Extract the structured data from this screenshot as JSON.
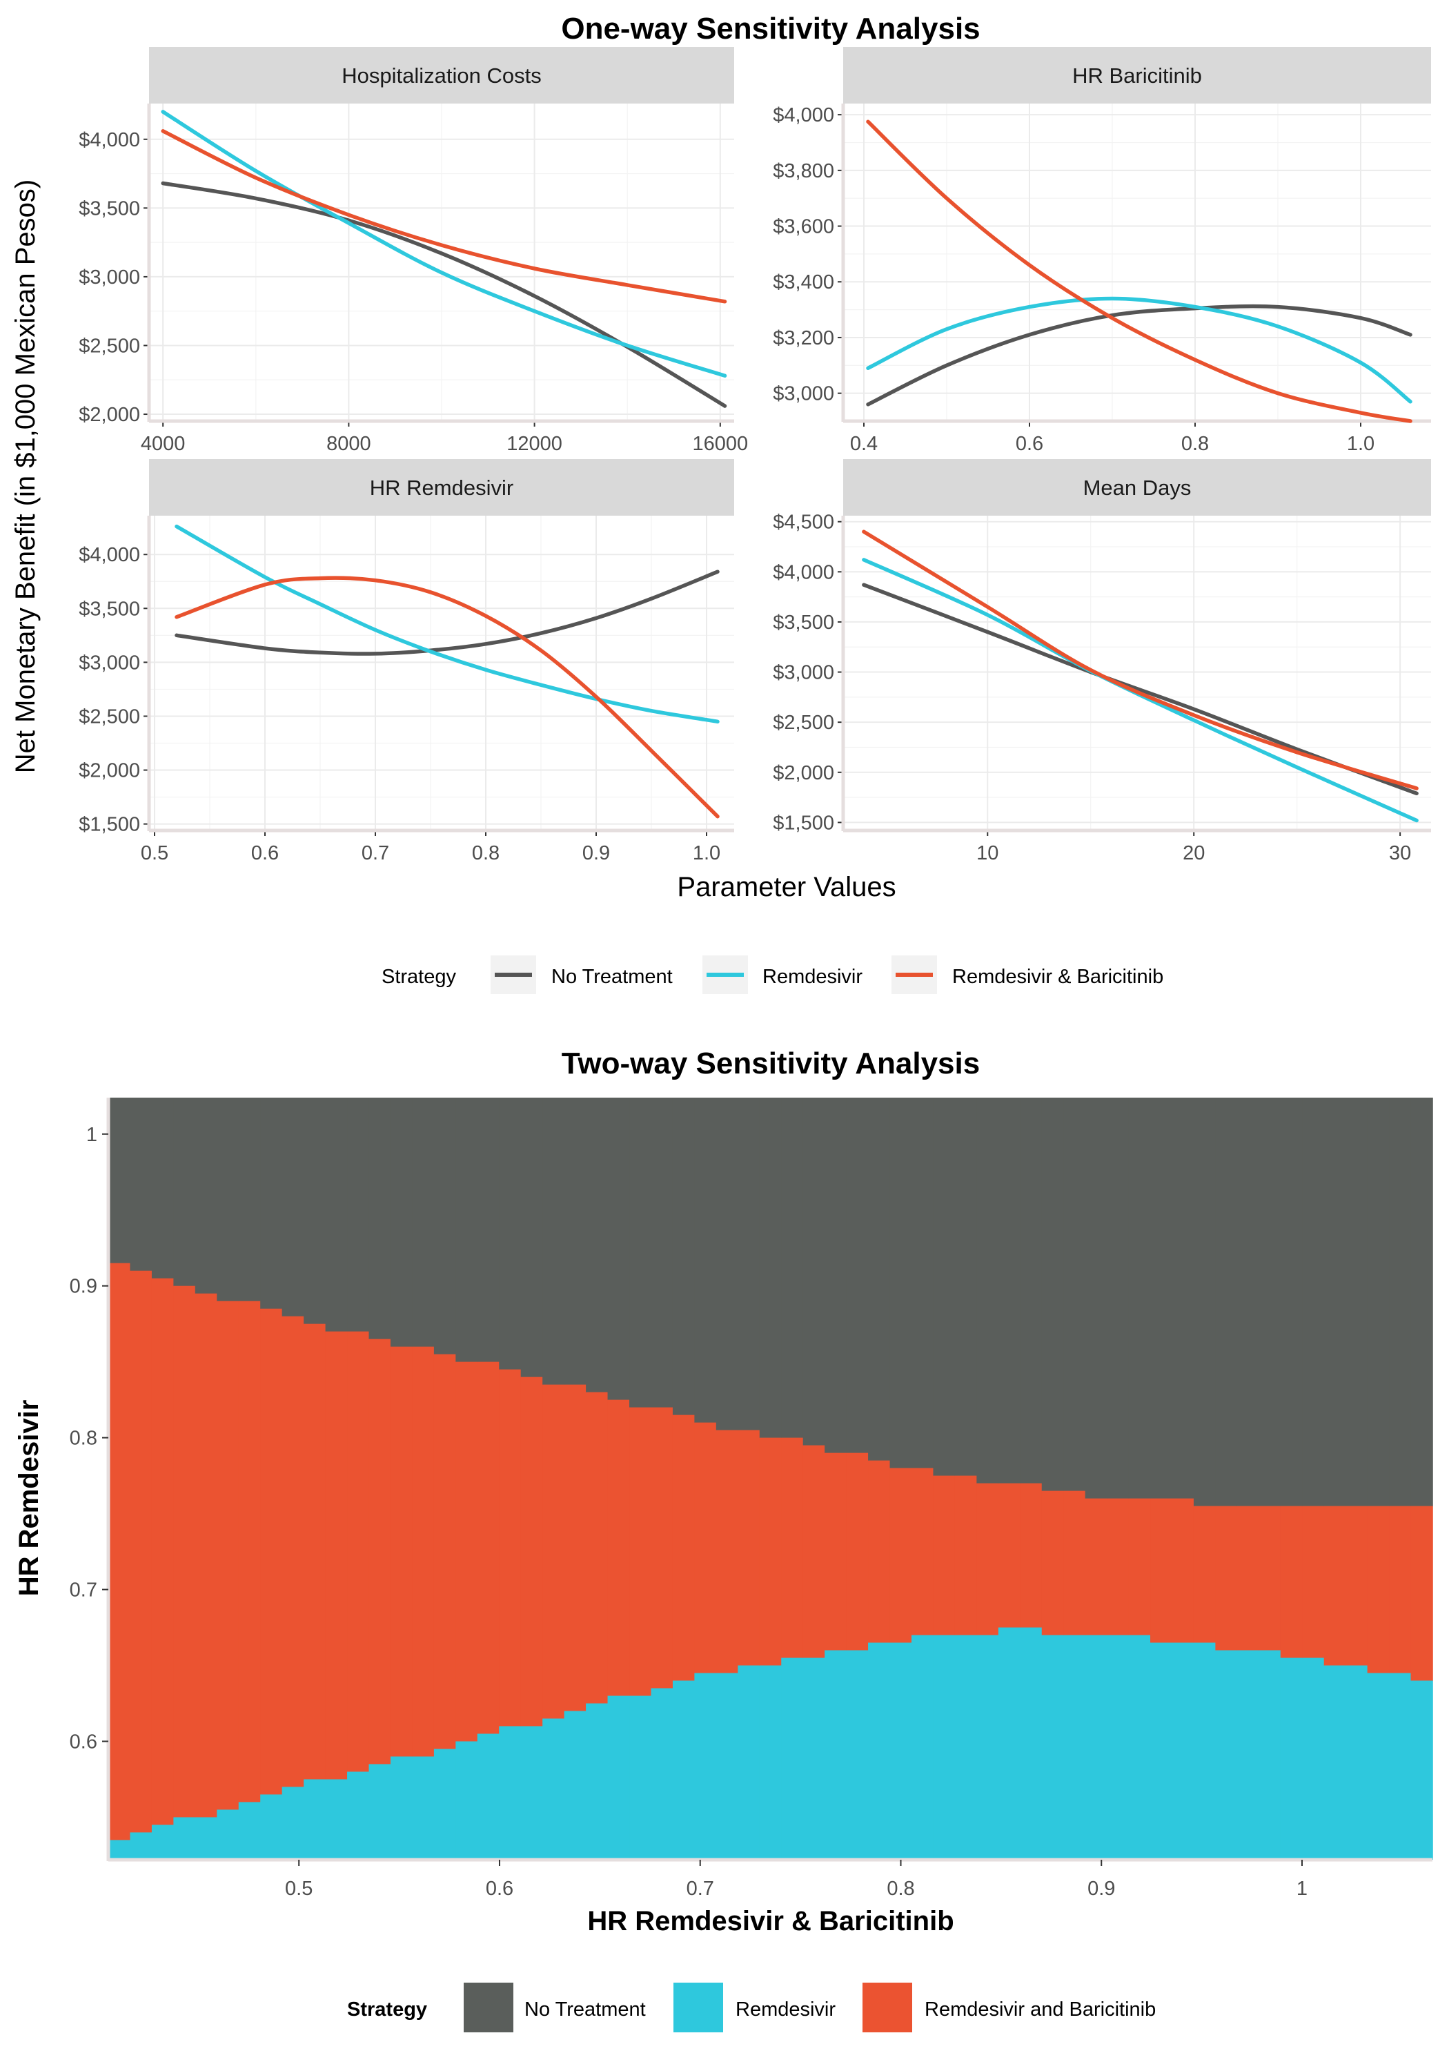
{
  "colors": {
    "no_treatment": "#555555",
    "remdesivir": "#2EC8DD",
    "remdesivir_baricitinib": "#E8522E",
    "no_treatment_fill": "#5A5E5B",
    "remdesivir_fill": "#2EC8DD",
    "remdesivir_baricitinib_fill": "#EB5331"
  },
  "chart_data": [
    {
      "type": "line",
      "title": "One-way Sensitivity Analysis",
      "ylabel": "Net Monetary Benefit (in $1,000 Mexican Pesos)",
      "xlabel": "Parameter Values",
      "legend": {
        "title": "Strategy",
        "position": "bottom",
        "entries": [
          "No Treatment",
          "Remdesivir",
          "Remdesivir & Baricitinib"
        ]
      },
      "panels": [
        {
          "strip": "Hospitalization Costs",
          "xlim": [
            3700,
            16300
          ],
          "ylim": [
            1950,
            4260
          ],
          "xticks": [
            4000,
            8000,
            12000,
            16000
          ],
          "xtick_labels": [
            "4000",
            "8000",
            "12000",
            "16000"
          ],
          "yticks": [
            2000,
            2500,
            3000,
            3500,
            4000
          ],
          "ytick_labels": [
            "$2,000",
            "$2,500",
            "$3,000",
            "$3,500",
            "$4,000"
          ],
          "x": [
            4000,
            6000,
            8000,
            10000,
            12000,
            14000,
            16100
          ],
          "series": [
            {
              "name": "No Treatment",
              "values": [
                3680,
                3570,
                3410,
                3170,
                2860,
                2490,
                2060
              ]
            },
            {
              "name": "Remdesivir",
              "values": [
                4200,
                3770,
                3390,
                3030,
                2750,
                2500,
                2280
              ]
            },
            {
              "name": "Remdesivir & Baricitinib",
              "values": [
                4060,
                3720,
                3450,
                3230,
                3060,
                2940,
                2820
              ]
            }
          ]
        },
        {
          "strip": "HR Baricitinib",
          "xlim": [
            0.375,
            1.085
          ],
          "ylim": [
            2900,
            4040
          ],
          "xticks": [
            0.4,
            0.6,
            0.8,
            1.0
          ],
          "xtick_labels": [
            "0.4",
            "0.6",
            "0.8",
            "1.0"
          ],
          "yticks": [
            3000,
            3200,
            3400,
            3600,
            3800,
            4000
          ],
          "ytick_labels": [
            "$3,000",
            "$3,200",
            "$3,400",
            "$3,600",
            "$3,800",
            "$4,000"
          ],
          "x": [
            0.405,
            0.5,
            0.6,
            0.7,
            0.8,
            0.9,
            1.0,
            1.06
          ],
          "series": [
            {
              "name": "No Treatment",
              "values": [
                2960,
                3100,
                3210,
                3280,
                3305,
                3310,
                3270,
                3210
              ]
            },
            {
              "name": "Remdesivir",
              "values": [
                3090,
                3230,
                3310,
                3340,
                3310,
                3240,
                3110,
                2970
              ]
            },
            {
              "name": "Remdesivir & Baricitinib",
              "values": [
                3975,
                3700,
                3460,
                3270,
                3120,
                3000,
                2930,
                2900
              ]
            }
          ]
        },
        {
          "strip": "HR Remdesivir",
          "xlim": [
            0.495,
            1.025
          ],
          "ylim": [
            1440,
            4360
          ],
          "xticks": [
            0.5,
            0.6,
            0.7,
            0.8,
            0.9,
            1.0
          ],
          "xtick_labels": [
            "0.5",
            "0.6",
            "0.7",
            "0.8",
            "0.9",
            "1.0"
          ],
          "yticks": [
            1500,
            2000,
            2500,
            3000,
            3500,
            4000
          ],
          "ytick_labels": [
            "$1,500",
            "$2,000",
            "$2,500",
            "$3,000",
            "$3,500",
            "$4,000"
          ],
          "x": [
            0.52,
            0.6,
            0.65,
            0.7,
            0.75,
            0.8,
            0.85,
            0.9,
            0.95,
            1.01
          ],
          "series": [
            {
              "name": "No Treatment",
              "values": [
                3250,
                3130,
                3090,
                3080,
                3110,
                3170,
                3270,
                3410,
                3590,
                3840
              ]
            },
            {
              "name": "Remdesivir",
              "values": [
                4260,
                3790,
                3540,
                3300,
                3100,
                2930,
                2790,
                2660,
                2550,
                2450
              ]
            },
            {
              "name": "Remdesivir & Baricitinib",
              "values": [
                3420,
                3720,
                3780,
                3760,
                3650,
                3430,
                3110,
                2680,
                2180,
                1570
              ]
            }
          ]
        },
        {
          "strip": "Mean Days",
          "xlim": [
            3,
            31.5
          ],
          "ylim": [
            1420,
            4560
          ],
          "xticks": [
            10,
            20,
            30
          ],
          "xtick_labels": [
            "10",
            "20",
            "30"
          ],
          "yticks": [
            1500,
            2000,
            2500,
            3000,
            3500,
            4000,
            4500
          ],
          "ytick_labels": [
            "$1,500",
            "$2,000",
            "$2,500",
            "$3,000",
            "$3,500",
            "$4,000",
            "$4,500"
          ],
          "x": [
            4,
            10,
            15,
            20,
            25,
            30.8
          ],
          "series": [
            {
              "name": "No Treatment",
              "values": [
                3870,
                3400,
                3000,
                2630,
                2230,
                1790
              ]
            },
            {
              "name": "Remdesivir",
              "values": [
                4120,
                3570,
                3010,
                2520,
                2050,
                1520
              ]
            },
            {
              "name": "Remdesivir & Baricitinib",
              "values": [
                4400,
                3650,
                3020,
                2570,
                2200,
                1840
              ]
            }
          ]
        }
      ]
    },
    {
      "type": "heatmap",
      "title": "Two-way Sensitivity Analysis",
      "xlabel": "HR Remdesivir & Baricitinib",
      "ylabel": "HR Remdesivir",
      "xlim": [
        0.405,
        1.065
      ],
      "ylim": [
        0.522,
        1.024
      ],
      "xticks": [
        0.5,
        0.6,
        0.7,
        0.8,
        0.9,
        1.0
      ],
      "xtick_labels": [
        "0.5",
        "0.6",
        "0.7",
        "0.8",
        "0.9",
        "1"
      ],
      "yticks": [
        0.6,
        0.7,
        0.8,
        0.9,
        1.0
      ],
      "ytick_labels": [
        "0.6",
        "0.7",
        "0.8",
        "0.9",
        "1"
      ],
      "x": [
        0.405,
        0.5,
        0.6,
        0.7,
        0.8,
        0.85,
        0.9,
        1.0,
        1.065
      ],
      "upper_boundary": [
        0.916,
        0.878,
        0.846,
        0.811,
        0.782,
        0.771,
        0.762,
        0.753,
        0.753
      ],
      "lower_boundary": [
        0.533,
        0.57,
        0.606,
        0.643,
        0.666,
        0.673,
        0.672,
        0.656,
        0.639
      ],
      "steps": 61,
      "regions": [
        {
          "name": "No Treatment",
          "position": "above upper boundary"
        },
        {
          "name": "Remdesivir and Baricitinib",
          "position": "between boundaries"
        },
        {
          "name": "Remdesivir",
          "position": "below lower boundary"
        }
      ],
      "legend": {
        "title": "Strategy",
        "position": "bottom",
        "entries": [
          "No Treatment",
          "Remdesivir",
          "Remdesivir and Baricitinib"
        ]
      }
    }
  ]
}
